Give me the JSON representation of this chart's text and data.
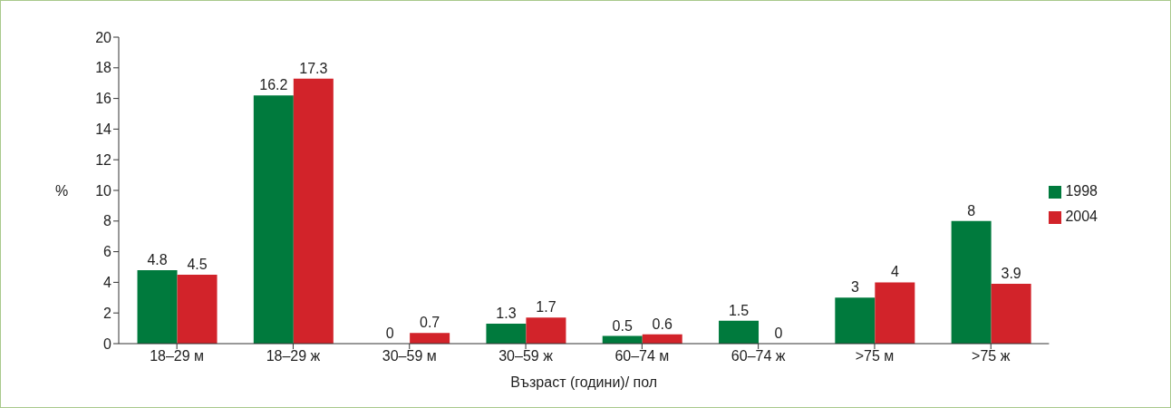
{
  "chart_data": {
    "type": "bar",
    "xlabel": "Възраст (години)/ пол",
    "ylabel": "%",
    "categories": [
      "18–29 м",
      "18–29 ж",
      "30–59 м",
      "30–59 ж",
      "60–74 м",
      "60–74 ж",
      ">75 м",
      ">75 ж"
    ],
    "series": [
      {
        "name": "1998",
        "color": "#007a3d",
        "values": [
          4.8,
          16.2,
          0,
          1.3,
          0.5,
          1.5,
          3,
          8
        ]
      },
      {
        "name": "2004",
        "color": "#d2232a",
        "values": [
          4.5,
          17.3,
          0.7,
          1.7,
          0.6,
          0,
          4,
          3.9
        ]
      }
    ],
    "ylim": [
      0,
      20
    ],
    "yticks": [
      0,
      2,
      4,
      6,
      8,
      10,
      12,
      14,
      16,
      18,
      20
    ],
    "grid": false,
    "legend": "right",
    "data_labels": true
  }
}
